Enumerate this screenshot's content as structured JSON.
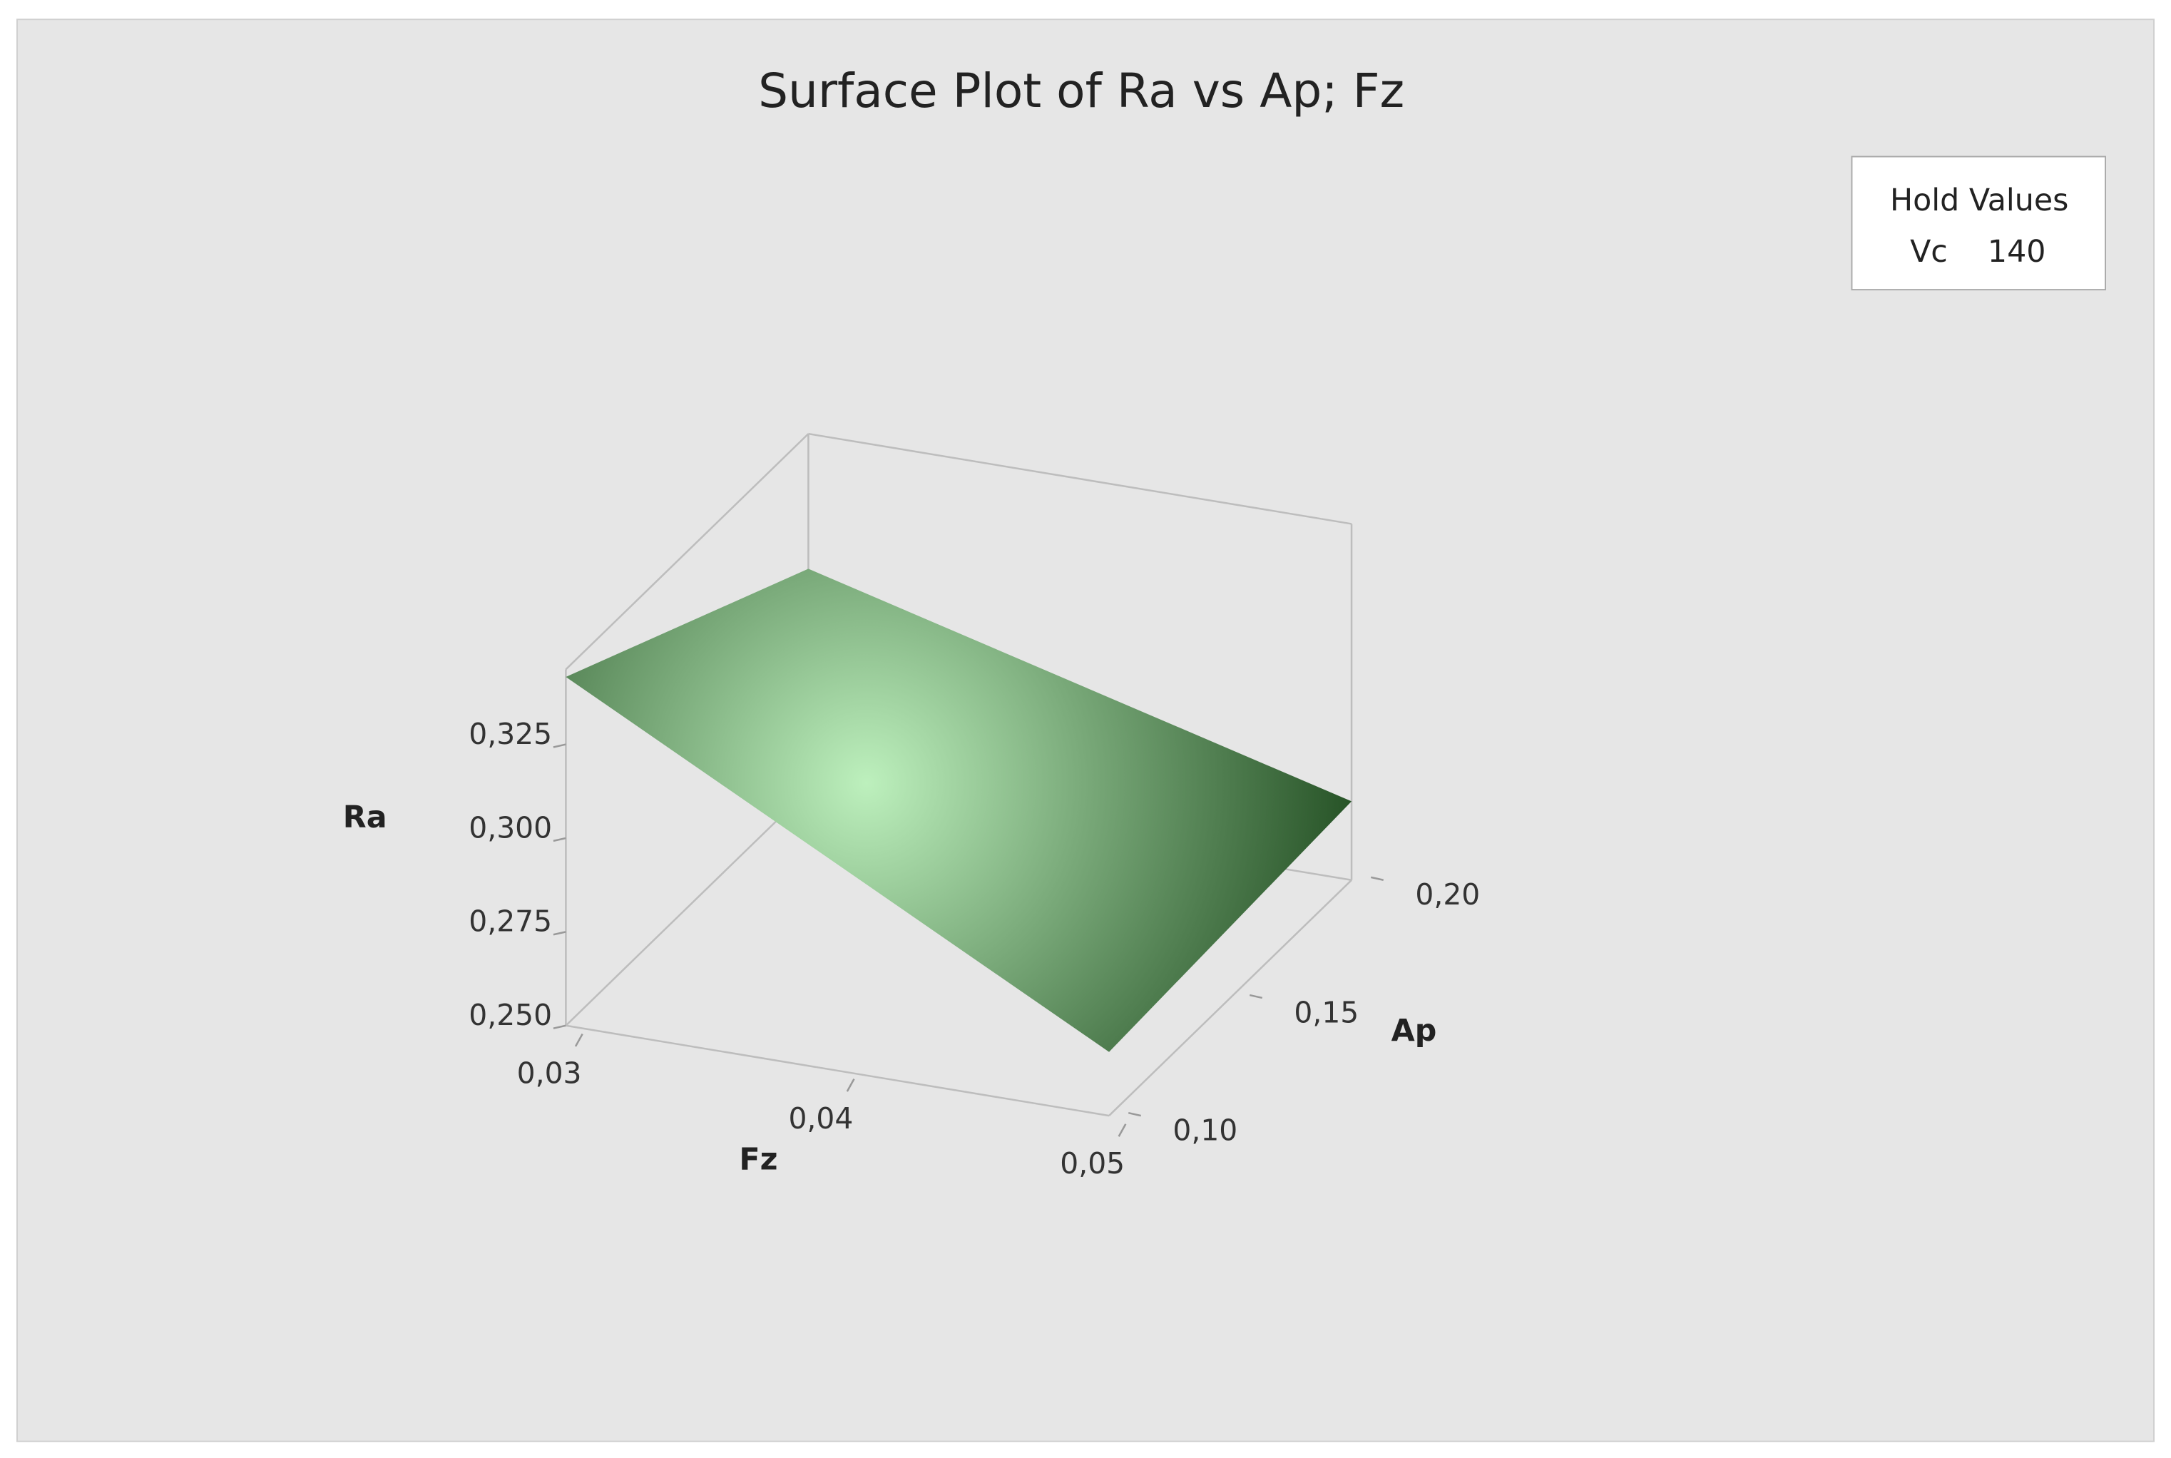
{
  "chart_data": {
    "type": "surface",
    "title": "Surface Plot of Ra vs Ap; Fz",
    "x_label": "Fz",
    "y_label": "Ap",
    "z_label": "Ra",
    "x": [
      0.03,
      0.05
    ],
    "y": [
      0.1,
      0.2
    ],
    "z": [
      [
        0.343,
        0.267
      ],
      [
        0.309,
        0.271
      ]
    ],
    "xlim": [
      0.03,
      0.05
    ],
    "ylim": [
      0.1,
      0.2
    ],
    "zlim": [
      0.25,
      0.345
    ],
    "xticks": [
      {
        "value": 0.03,
        "label": "0,03"
      },
      {
        "value": 0.04,
        "label": "0,04"
      },
      {
        "value": 0.05,
        "label": "0,05"
      }
    ],
    "yticks": [
      {
        "value": 0.1,
        "label": "0,10"
      },
      {
        "value": 0.15,
        "label": "0,15"
      },
      {
        "value": 0.2,
        "label": "0,20"
      }
    ],
    "zticks": [
      {
        "value": 0.25,
        "label": "0,250"
      },
      {
        "value": 0.275,
        "label": "0,275"
      },
      {
        "value": 0.3,
        "label": "0,300"
      },
      {
        "value": 0.325,
        "label": "0,325"
      }
    ],
    "color_light": "#bdf0bd",
    "color_dark": "#234f23",
    "hold_values": {
      "title": "Hold Values",
      "items": [
        {
          "name": "Vc",
          "value": 140
        }
      ]
    }
  }
}
